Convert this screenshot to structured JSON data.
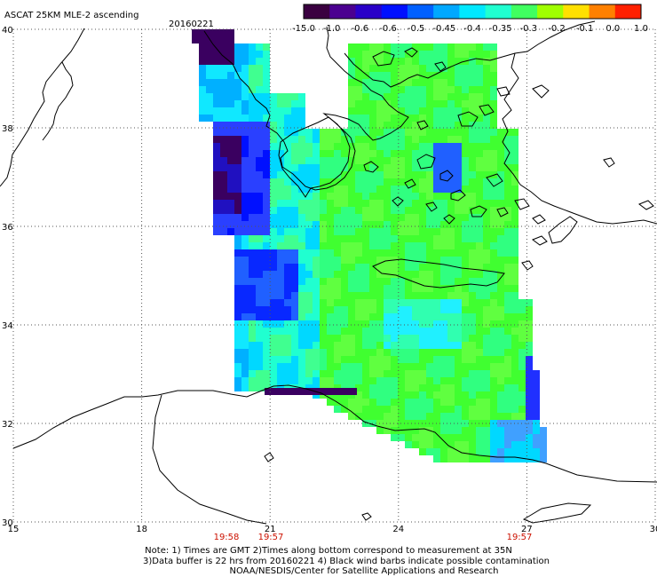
{
  "title": "ASCAT 25KM MLE-2 ascending",
  "date": "20160221",
  "colorbar": {
    "labels": [
      "-15.0",
      "-1.0",
      "-0.6",
      "-0.6",
      "-0.5",
      "-0.45",
      "-0.4",
      "-0.35",
      "-0.3",
      "-0.2",
      "-0.1",
      "0.0",
      "1.0"
    ],
    "colors": [
      "#3a0040",
      "#4b0090",
      "#2a00c8",
      "#0010ff",
      "#0060ff",
      "#00a8ff",
      "#00e8ff",
      "#20ffd0",
      "#40ff60",
      "#a0ff00",
      "#ffe000",
      "#ff8000",
      "#ff2000"
    ]
  },
  "lat_labels": [
    "40",
    "38",
    "36",
    "34",
    "32",
    "30"
  ],
  "lon_labels": [
    "15",
    "18",
    "21",
    "24",
    "27",
    "30"
  ],
  "times": [
    "19:58",
    "19:57",
    "19:57"
  ],
  "notes": {
    "line1": "Note: 1) Times are GMT 2)Times along bottom correspond to measurement at 35N",
    "line2": "3)Data buffer is 22 hrs from 20160221 4) Black wind barbs indicate possible contamination",
    "line3": "NOAA/NESDIS/Center for Satellite Applications and Research"
  },
  "map_bounds": {
    "lon": [
      15,
      30
    ],
    "lat": [
      30,
      40
    ]
  }
}
